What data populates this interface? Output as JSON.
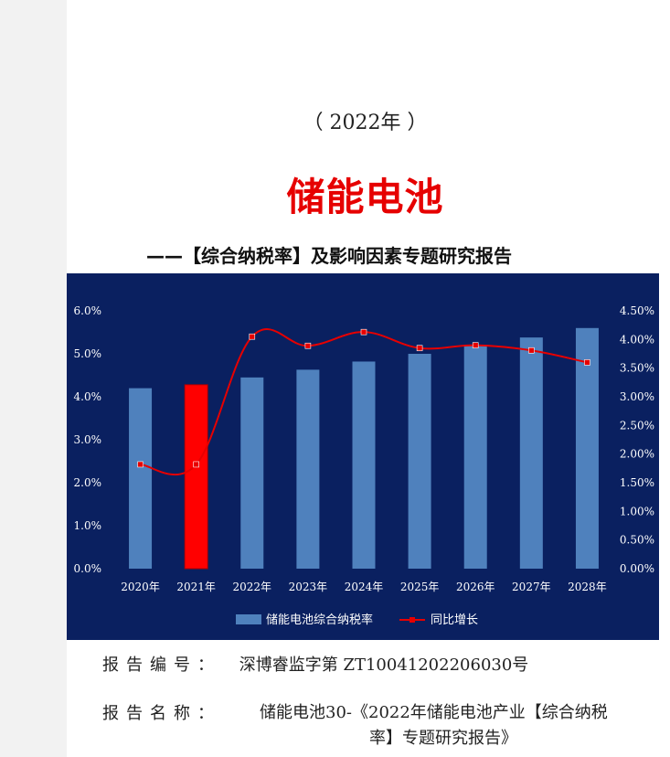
{
  "header": {
    "year_line": "（ 2022年 ）",
    "title": "储能电池",
    "subtitle": "——【综合纳税率】及影响因素专题研究报告"
  },
  "colors": {
    "panel_bg": "#0a2060",
    "bar": "#4f81bd",
    "highlight_bar": "#ff0000",
    "line": "#e60000",
    "title_red": "#e60000"
  },
  "chart_data": {
    "type": "bar",
    "categories": [
      "2020年",
      "2021年",
      "2022年",
      "2023年",
      "2024年",
      "2025年",
      "2026年",
      "2027年",
      "2028年"
    ],
    "series": [
      {
        "name": "储能电池综合纳税率",
        "axis": "left",
        "kind": "bar",
        "values": [
          4.2,
          4.28,
          4.45,
          4.63,
          4.82,
          5.0,
          5.19,
          5.38,
          5.6
        ],
        "highlight_index": 1
      },
      {
        "name": "同比增长",
        "axis": "right",
        "kind": "line",
        "values": [
          1.82,
          1.82,
          4.05,
          3.89,
          4.13,
          3.85,
          3.9,
          3.81,
          3.6
        ]
      }
    ],
    "left_axis": {
      "ylim": [
        0,
        6
      ],
      "ticks": [
        "0.0%",
        "1.0%",
        "2.0%",
        "3.0%",
        "4.0%",
        "5.0%",
        "6.0%"
      ]
    },
    "right_axis": {
      "ylim": [
        0,
        4.5
      ],
      "ticks": [
        "0.00%",
        "0.50%",
        "1.00%",
        "1.50%",
        "2.00%",
        "2.50%",
        "3.00%",
        "3.50%",
        "4.00%",
        "4.50%"
      ]
    },
    "grid": false,
    "legend_position": "bottom"
  },
  "info": {
    "report_no_label": "报告编号：",
    "report_no_value": "深博睿监字第 ZT10041202206030号",
    "report_name_label": "报告名称：",
    "report_name_line1": "储能电池30-《2022年储能电池产业【综合纳税",
    "report_name_line2": "率】专题研究报告》"
  }
}
